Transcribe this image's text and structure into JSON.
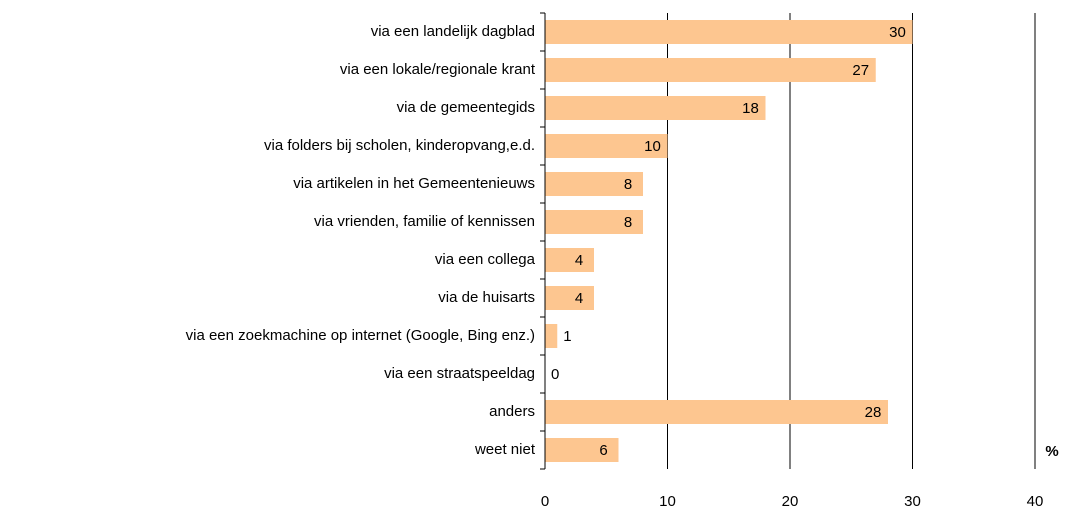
{
  "chart_data": {
    "type": "bar",
    "orientation": "horizontal",
    "categories": [
      "via een landelijk dagblad",
      "via een lokale/regionale krant",
      "via de gemeentegids",
      "via folders bij scholen, kinderopvang,e.d.",
      "via artikelen in het Gemeentenieuws",
      "via vrienden, familie of kennissen",
      "via een collega",
      "via de huisarts",
      "via een zoekmachine op internet (Google, Bing enz.)",
      "via een straatspeeldag",
      "anders",
      "weet niet"
    ],
    "values": [
      30,
      27,
      18,
      10,
      8,
      8,
      4,
      4,
      1,
      0,
      28,
      6
    ],
    "color": "#fdc690",
    "xlim": [
      0,
      40
    ],
    "xticks": [
      0,
      10,
      20,
      30,
      40
    ],
    "grid": true,
    "unit_label": "%"
  }
}
